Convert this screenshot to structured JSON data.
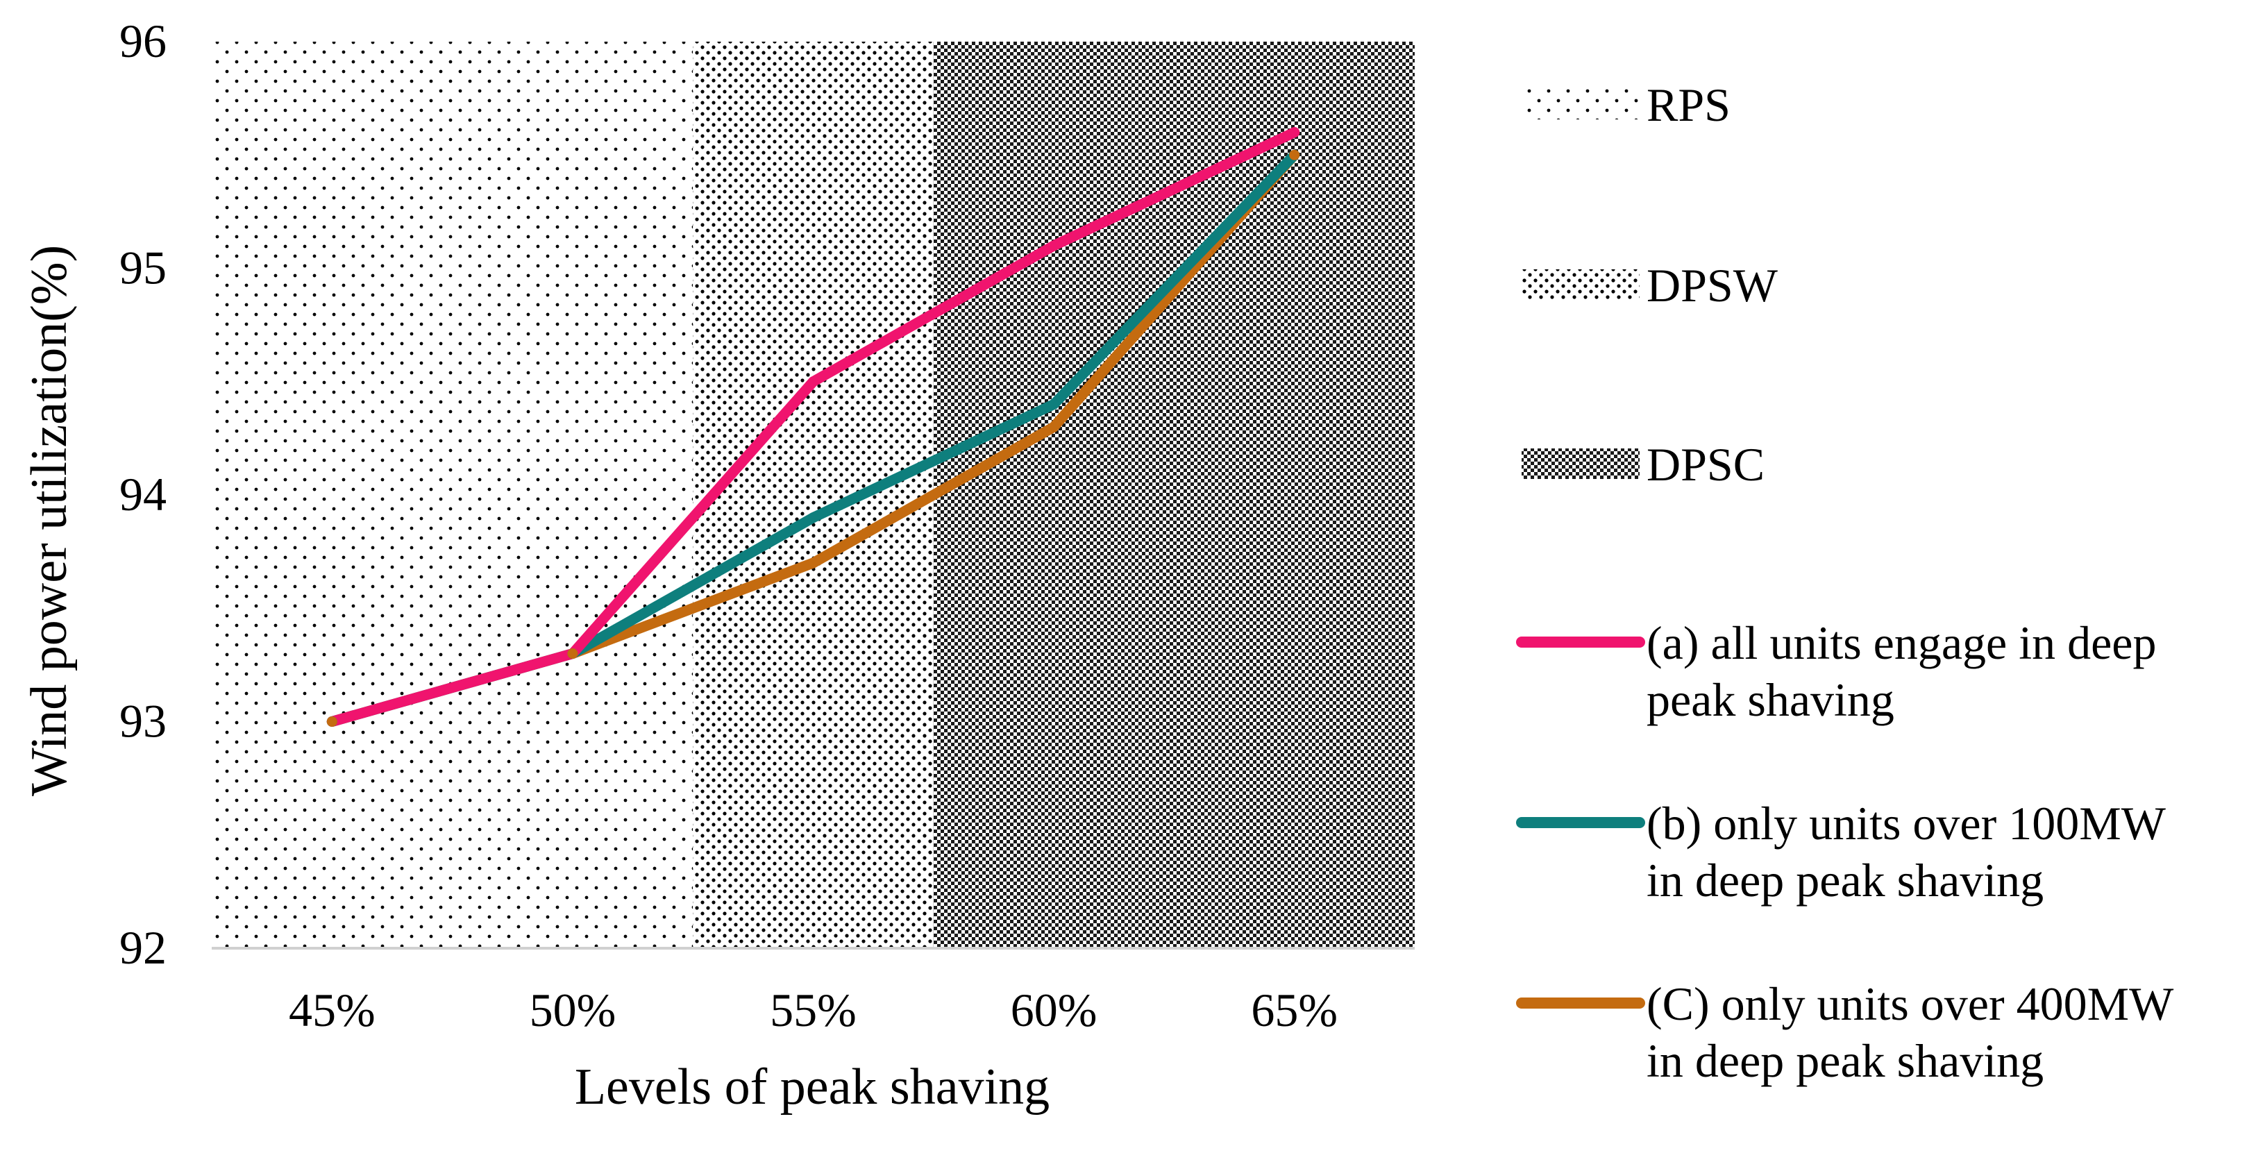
{
  "chart_data": {
    "type": "line",
    "title": "",
    "xlabel": "Levels of peak shaving",
    "ylabel": "Wind power utilization(%)",
    "categories": [
      "45%",
      "50%",
      "55%",
      "60%",
      "65%"
    ],
    "ylim": [
      92,
      96
    ],
    "yticks": [
      "92",
      "93",
      "94",
      "95",
      "96"
    ],
    "grid": false,
    "legend_position": "right",
    "regions": [
      {
        "name": "RPS",
        "label": "RPS",
        "from": 0,
        "to": 2,
        "pattern": "sparse-dots"
      },
      {
        "name": "DPSW",
        "label": "DPSW",
        "from": 2,
        "to": 3,
        "pattern": "medium-dots"
      },
      {
        "name": "DPSC",
        "label": "DPSC",
        "from": 3,
        "to": 5,
        "pattern": "dense-checker"
      }
    ],
    "series": [
      {
        "name": "a",
        "label_line1": "(a) all units engage in deep",
        "label_line2": "peak shaving",
        "color": "#f0146e",
        "values": [
          93.0,
          93.3,
          94.5,
          95.1,
          95.6
        ]
      },
      {
        "name": "b",
        "label_line1": "(b) only units over 100MW",
        "label_line2": "in deep peak shaving",
        "color": "#0e7f7d",
        "values": [
          93.0,
          93.3,
          93.9,
          94.4,
          95.5
        ]
      },
      {
        "name": "c",
        "label_line1": "(C) only units over 400MW",
        "label_line2": "in deep peak shaving",
        "color": "#c46b10",
        "values": [
          93.0,
          93.3,
          93.7,
          94.3,
          95.5
        ]
      }
    ]
  }
}
